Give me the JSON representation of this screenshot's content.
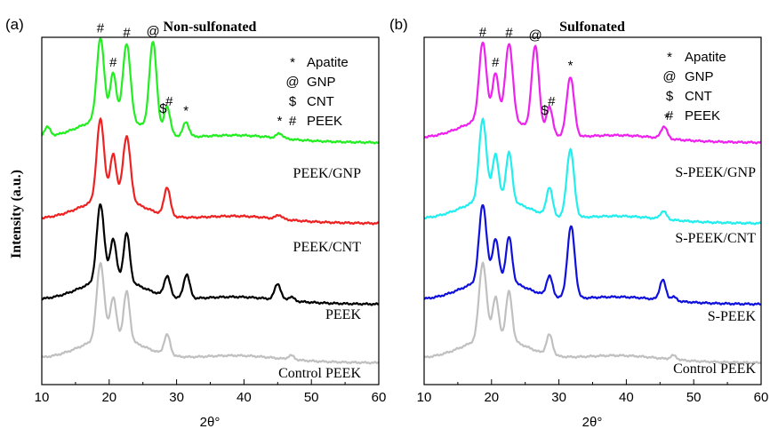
{
  "chart_data": [
    {
      "type": "line",
      "panel_label": "(a)",
      "title": "Non-sulfonated",
      "xlabel": "2θ°",
      "ylabel": "Intensity (a.u.)",
      "xlim": [
        10,
        60
      ],
      "xticks": [
        "10",
        "20",
        "30",
        "40",
        "50",
        "60"
      ],
      "yticks_shown": false,
      "legend": [
        {
          "symbol": "*",
          "label": "Apatite"
        },
        {
          "symbol": "@",
          "label": "GNP"
        },
        {
          "symbol": "$",
          "label": "CNT"
        },
        {
          "symbol": "#",
          "label": "PEEK"
        }
      ],
      "series": [
        {
          "name": "PEEK/GNP",
          "color": "#22ee22",
          "offset": 3.4,
          "peaks": [
            [
              10.8,
              0.12
            ],
            [
              18.7,
              1.0
            ],
            [
              20.6,
              0.55
            ],
            [
              22.6,
              0.95
            ],
            [
              26.5,
              1.1
            ],
            [
              28.6,
              0.35
            ],
            [
              31.4,
              0.18
            ],
            [
              45.3,
              0.06
            ]
          ],
          "markers": [
            {
              "x": 18.7,
              "symbol": "#"
            },
            {
              "x": 20.6,
              "symbol": "#"
            },
            {
              "x": 22.6,
              "symbol": "#"
            },
            {
              "x": 26.5,
              "symbol": "@"
            },
            {
              "x": 28.0,
              "symbol": "$"
            },
            {
              "x": 28.9,
              "symbol": "#"
            },
            {
              "x": 31.4,
              "symbol": "*"
            },
            {
              "x": 45.3,
              "symbol": "*"
            }
          ]
        },
        {
          "name": "PEEK/CNT",
          "color": "#ee2222",
          "offset": 2.3,
          "peaks": [
            [
              18.7,
              1.0
            ],
            [
              20.6,
              0.55
            ],
            [
              22.6,
              0.8
            ],
            [
              28.6,
              0.35
            ],
            [
              45.2,
              0.05
            ]
          ],
          "markers": []
        },
        {
          "name": "PEEK",
          "color": "#000000",
          "offset": 1.2,
          "peaks": [
            [
              18.7,
              0.95
            ],
            [
              20.6,
              0.5
            ],
            [
              22.6,
              0.6
            ],
            [
              28.6,
              0.25
            ],
            [
              31.5,
              0.3
            ],
            [
              45.0,
              0.2
            ],
            [
              47.0,
              0.05
            ]
          ],
          "markers": []
        },
        {
          "name": "Control PEEK",
          "color": "#c0c0c0",
          "offset": 0.0,
          "peaks": [
            [
              18.7,
              0.95
            ],
            [
              20.6,
              0.5
            ],
            [
              22.6,
              0.6
            ],
            [
              28.6,
              0.25
            ],
            [
              47.0,
              0.05
            ]
          ],
          "markers": []
        }
      ]
    },
    {
      "type": "line",
      "panel_label": "(b)",
      "title": "Sulfonated",
      "xlabel": "2θ°",
      "ylabel": "",
      "xlim": [
        10,
        60
      ],
      "xticks": [
        "10",
        "20",
        "30",
        "40",
        "50",
        "60"
      ],
      "yticks_shown": false,
      "legend": [
        {
          "symbol": "*",
          "label": "Apatite"
        },
        {
          "symbol": "@",
          "label": "GNP"
        },
        {
          "symbol": "$",
          "label": "CNT"
        },
        {
          "symbol": "#",
          "label": "PEEK"
        }
      ],
      "series": [
        {
          "name": "S-PEEK/GNP",
          "color": "#ee22ee",
          "offset": 3.4,
          "peaks": [
            [
              18.7,
              0.95
            ],
            [
              20.6,
              0.55
            ],
            [
              22.6,
              0.95
            ],
            [
              26.5,
              1.05
            ],
            [
              28.6,
              0.35
            ],
            [
              31.7,
              0.75
            ],
            [
              45.6,
              0.15
            ]
          ],
          "markers": [
            {
              "x": 18.7,
              "symbol": "#"
            },
            {
              "x": 20.6,
              "symbol": "#"
            },
            {
              "x": 22.6,
              "symbol": "#"
            },
            {
              "x": 26.5,
              "symbol": "@"
            },
            {
              "x": 27.9,
              "symbol": "$"
            },
            {
              "x": 28.9,
              "symbol": "#"
            },
            {
              "x": 31.7,
              "symbol": "*"
            },
            {
              "x": 46.0,
              "symbol": "*"
            }
          ]
        },
        {
          "name": "S-PEEK/CNT",
          "color": "#22eeee",
          "offset": 2.3,
          "peaks": [
            [
              18.7,
              1.0
            ],
            [
              20.6,
              0.55
            ],
            [
              22.6,
              0.6
            ],
            [
              28.6,
              0.35
            ],
            [
              31.7,
              0.85
            ],
            [
              45.5,
              0.1
            ]
          ],
          "markers": []
        },
        {
          "name": "S-PEEK",
          "color": "#1010dd",
          "offset": 1.2,
          "peaks": [
            [
              18.7,
              0.95
            ],
            [
              20.6,
              0.5
            ],
            [
              22.6,
              0.55
            ],
            [
              28.6,
              0.25
            ],
            [
              31.8,
              0.9
            ],
            [
              45.4,
              0.25
            ],
            [
              47.0,
              0.05
            ]
          ],
          "markers": []
        },
        {
          "name": "Control PEEK",
          "color": "#c0c0c0",
          "offset": 0.0,
          "peaks": [
            [
              18.7,
              0.95
            ],
            [
              20.6,
              0.5
            ],
            [
              22.6,
              0.6
            ],
            [
              28.6,
              0.25
            ],
            [
              47.0,
              0.05
            ]
          ],
          "markers": []
        }
      ]
    }
  ]
}
